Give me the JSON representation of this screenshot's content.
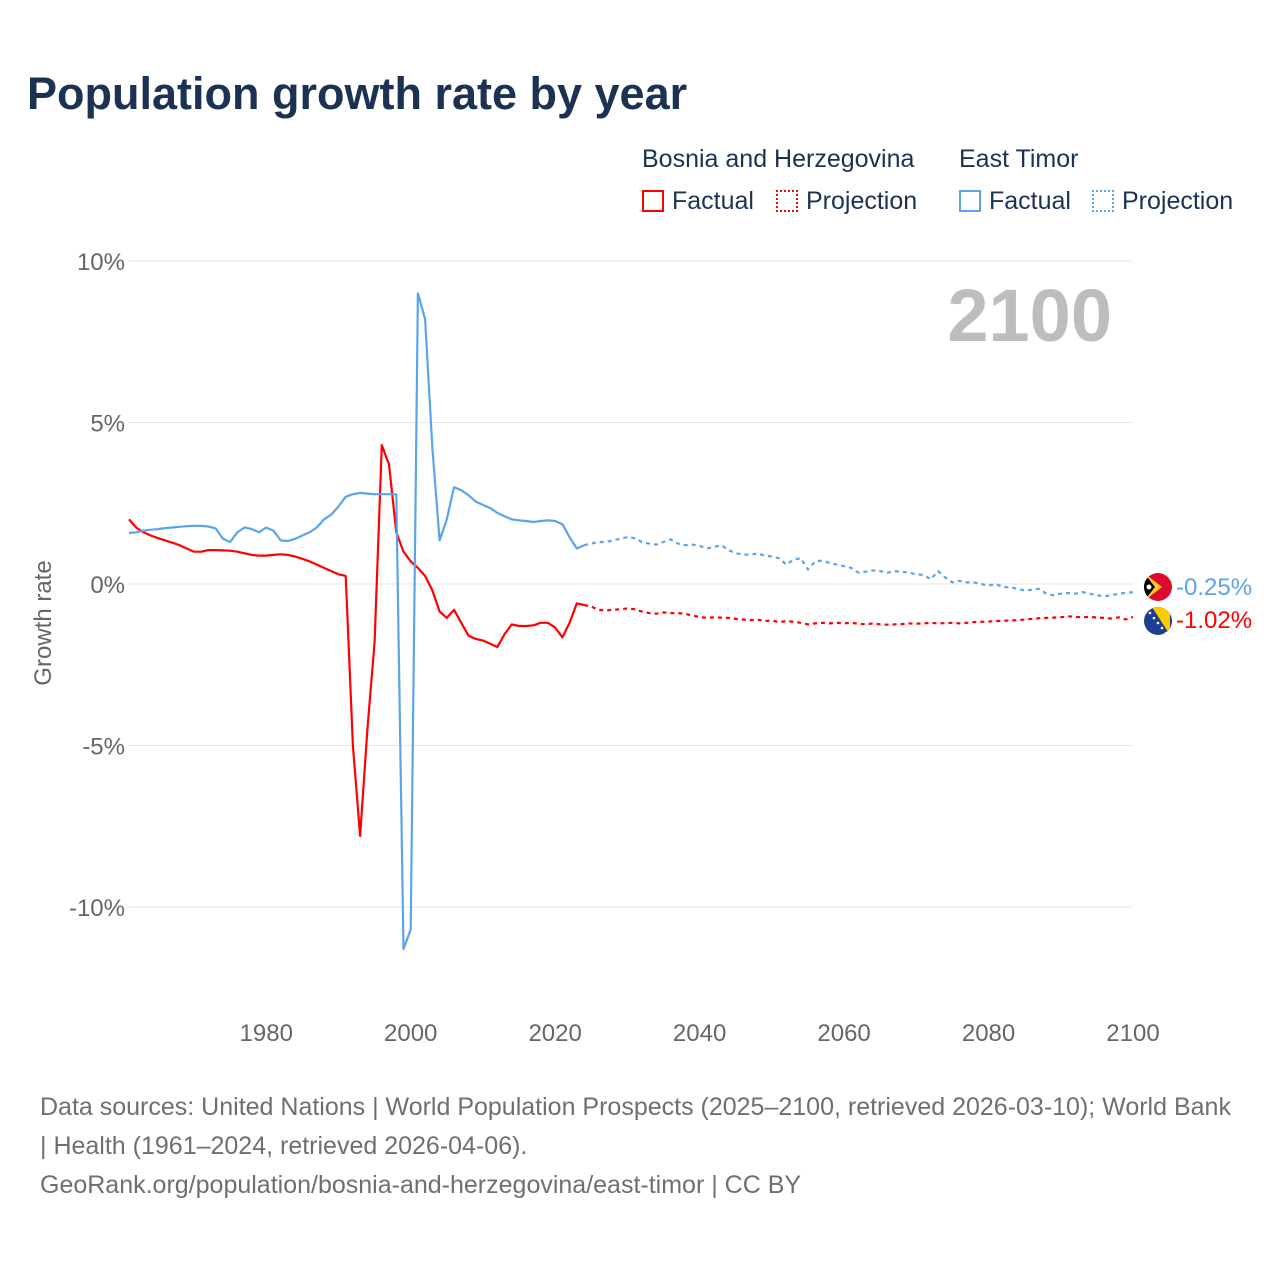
{
  "title": "Population growth rate by year",
  "legend": {
    "groups": [
      {
        "name": "Bosnia and Herzegovina",
        "color": "#ff0000",
        "factual": "Factual",
        "projection": "Projection"
      },
      {
        "name": "East Timor",
        "color": "#5ba4ec",
        "factual": "Factual",
        "projection": "Projection"
      }
    ]
  },
  "year_label": "2100",
  "end_labels": {
    "east_timor": "-0.25%",
    "bosnia": "-1.02%"
  },
  "footer": {
    "sources": "Data sources: United Nations | World Population Prospects (2025–2100, retrieved 2026-03-10); World Bank | Health (1961–2024, retrieved 2026-04-06).",
    "link": "GeoRank.org/population/bosnia-and-herzegovina/east-timor | CC BY"
  },
  "chart_data": {
    "type": "line",
    "title": "Population growth rate by year",
    "xlabel": "",
    "ylabel": "Growth rate",
    "xlim": [
      1961,
      2100
    ],
    "ylim": [
      -12.5,
      10.5
    ],
    "xticks": [
      1980,
      2000,
      2020,
      2040,
      2060,
      2080,
      2100
    ],
    "xtick_labels": [
      "1980",
      "2000",
      "2020",
      "2040",
      "2060",
      "2080",
      "2100"
    ],
    "yticks": [
      10,
      5,
      0,
      -5,
      -10
    ],
    "ytick_labels": [
      "10%",
      "5%",
      "0%",
      "-5%",
      "-10%"
    ],
    "grid": true,
    "legend_position": "top-right",
    "series": [
      {
        "name": "Bosnia and Herzegovina",
        "kind": "Factual",
        "color": "#ff0000",
        "x_start": 1961,
        "values": [
          2.0,
          1.75,
          1.6,
          1.5,
          1.42,
          1.35,
          1.28,
          1.2,
          1.1,
          1.0,
          1.0,
          1.05,
          1.05,
          1.04,
          1.03,
          1.0,
          0.95,
          0.9,
          0.88,
          0.88,
          0.9,
          0.92,
          0.9,
          0.85,
          0.78,
          0.7,
          0.6,
          0.5,
          0.4,
          0.3,
          0.25,
          -5.0,
          -7.8,
          -4.5,
          -1.8,
          4.3,
          3.7,
          1.6,
          1.0,
          0.7,
          0.5,
          0.25,
          -0.2,
          -0.85,
          -1.05,
          -0.8,
          -1.2,
          -1.6,
          -1.7,
          -1.75,
          -1.85,
          -1.95,
          -1.55,
          -1.25,
          -1.3,
          -1.3,
          -1.28,
          -1.2,
          -1.2,
          -1.35,
          -1.65,
          -1.2,
          -0.6,
          -0.65
        ]
      },
      {
        "name": "Bosnia and Herzegovina",
        "kind": "Projection",
        "color": "#ff0000",
        "x_start": 2024,
        "values": [
          -0.65,
          -0.7,
          -0.8,
          -0.82,
          -0.8,
          -0.78,
          -0.76,
          -0.78,
          -0.85,
          -0.9,
          -0.92,
          -0.88,
          -0.9,
          -0.9,
          -0.92,
          -0.98,
          -1.02,
          -1.05,
          -1.03,
          -1.04,
          -1.05,
          -1.08,
          -1.1,
          -1.12,
          -1.1,
          -1.15,
          -1.13,
          -1.18,
          -1.15,
          -1.17,
          -1.2,
          -1.25,
          -1.22,
          -1.2,
          -1.22,
          -1.2,
          -1.22,
          -1.2,
          -1.23,
          -1.25,
          -1.22,
          -1.25,
          -1.26,
          -1.25,
          -1.24,
          -1.22,
          -1.23,
          -1.22,
          -1.2,
          -1.22,
          -1.21,
          -1.2,
          -1.22,
          -1.2,
          -1.18,
          -1.17,
          -1.16,
          -1.15,
          -1.14,
          -1.13,
          -1.12,
          -1.1,
          -1.08,
          -1.06,
          -1.05,
          -1.04,
          -1.03,
          -1.0,
          -1.02,
          -1.03,
          -1.02,
          -1.04,
          -1.05,
          -1.07,
          -1.03,
          -1.1,
          -1.02
        ]
      },
      {
        "name": "East Timor",
        "kind": "Factual",
        "color": "#5ba4ec",
        "x_start": 1961,
        "values": [
          1.58,
          1.6,
          1.65,
          1.68,
          1.7,
          1.73,
          1.75,
          1.77,
          1.79,
          1.8,
          1.8,
          1.78,
          1.72,
          1.4,
          1.3,
          1.6,
          1.75,
          1.7,
          1.6,
          1.75,
          1.65,
          1.35,
          1.33,
          1.4,
          1.5,
          1.6,
          1.75,
          2.0,
          2.15,
          2.4,
          2.7,
          2.78,
          2.82,
          2.8,
          2.78,
          2.78,
          2.78,
          2.78,
          -11.3,
          -10.7,
          9.0,
          8.2,
          4.2,
          1.35,
          2.0,
          3.0,
          2.9,
          2.75,
          2.55,
          2.45,
          2.35,
          2.2,
          2.1,
          2.0,
          1.97,
          1.95,
          1.92,
          1.95,
          1.97,
          1.95,
          1.85,
          1.45,
          1.1,
          1.2
        ]
      },
      {
        "name": "East Timor",
        "kind": "Projection",
        "color": "#5ba4ec",
        "x_start": 2024,
        "values": [
          1.2,
          1.25,
          1.3,
          1.3,
          1.35,
          1.4,
          1.45,
          1.42,
          1.3,
          1.25,
          1.22,
          1.3,
          1.38,
          1.25,
          1.2,
          1.22,
          1.18,
          1.1,
          1.15,
          1.2,
          1.05,
          0.95,
          0.92,
          0.9,
          0.95,
          0.88,
          0.85,
          0.8,
          0.6,
          0.75,
          0.8,
          0.45,
          0.7,
          0.72,
          0.65,
          0.6,
          0.55,
          0.5,
          0.35,
          0.38,
          0.42,
          0.4,
          0.35,
          0.4,
          0.38,
          0.35,
          0.3,
          0.28,
          0.15,
          0.4,
          0.2,
          0.05,
          0.1,
          0.05,
          0.05,
          0.0,
          -0.05,
          0.0,
          -0.1,
          -0.1,
          -0.15,
          -0.2,
          -0.18,
          -0.15,
          -0.3,
          -0.35,
          -0.3,
          -0.28,
          -0.3,
          -0.25,
          -0.3,
          -0.35,
          -0.38,
          -0.35,
          -0.3,
          -0.28,
          -0.25
        ]
      }
    ]
  }
}
